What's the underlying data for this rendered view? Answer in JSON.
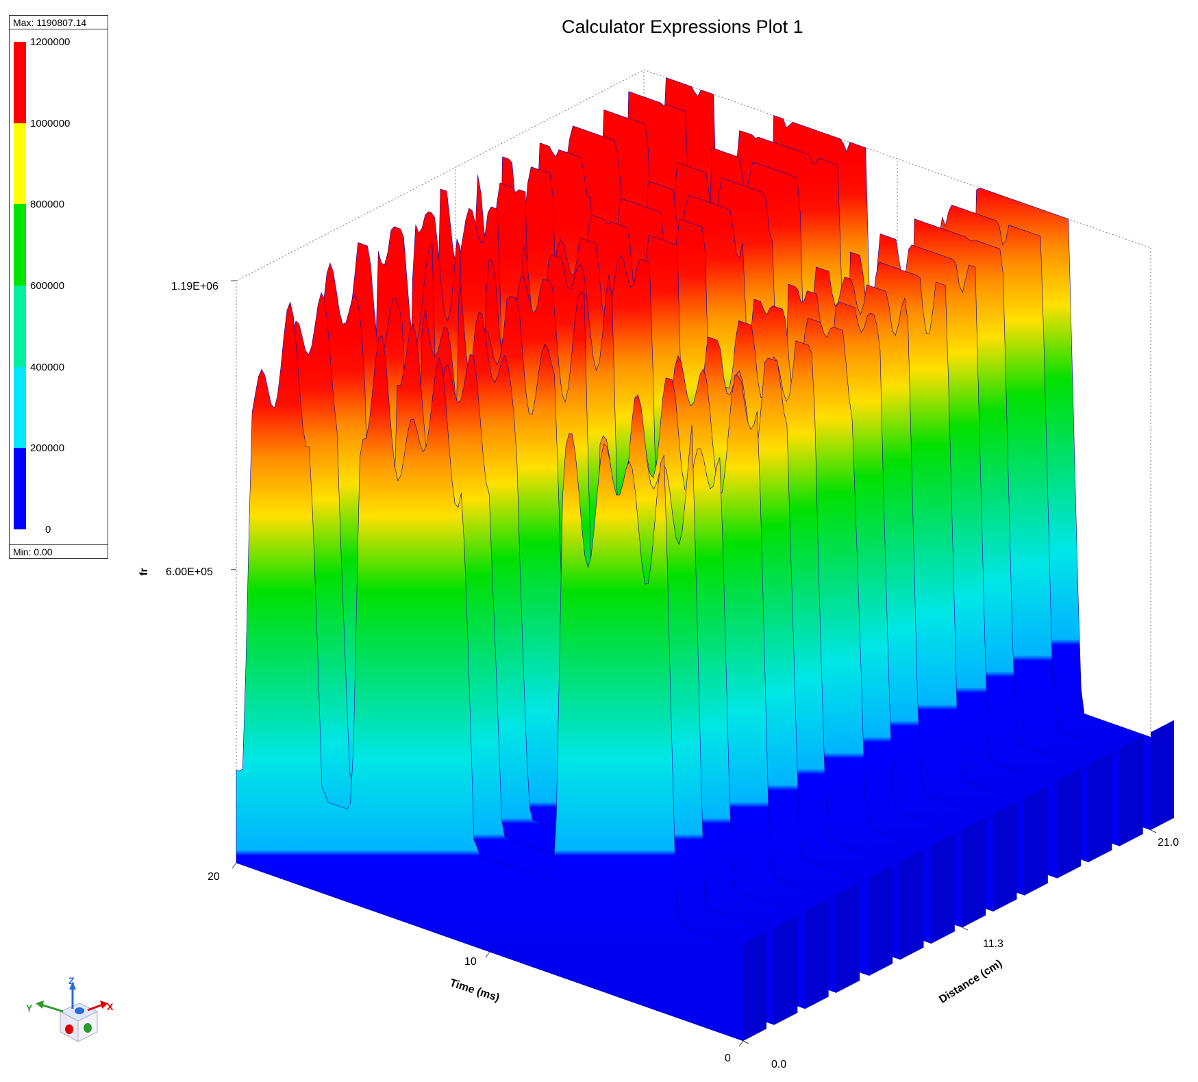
{
  "title": "Calculator Expressions Plot 1",
  "legend": {
    "max_text": "Max: 1190807.14",
    "min_text": "Min: 0.00",
    "ticks": [
      "1200000",
      "1000000",
      "800000",
      "600000",
      "400000",
      "200000",
      "0"
    ],
    "colors": [
      "#0000ff",
      "#00e8ff",
      "#00f0a0",
      "#00e400",
      "#ffff00",
      "#ff0000"
    ]
  },
  "chart_data": {
    "type": "surface",
    "title": "Calculator Expressions Plot 1",
    "zlabel": "fr",
    "xlabel": "Time (ms)",
    "ylabel": "Distance (cm)",
    "z_ticks": [
      "1.19E+06",
      "6.00E+05"
    ],
    "time_ticks": [
      "20",
      "10",
      "0"
    ],
    "distance_ticks": [
      "21.0",
      "11.3",
      "0.0"
    ],
    "zlim": [
      0,
      1190807.14
    ],
    "xlim": [
      0,
      20
    ],
    "ylim": [
      0,
      21.0
    ],
    "colormap": [
      {
        "from": 0,
        "to": 200000,
        "color": "#0000ff"
      },
      {
        "from": 200000,
        "to": 400000,
        "color": "#00e8ff"
      },
      {
        "from": 400000,
        "to": 600000,
        "color": "#00f0a0"
      },
      {
        "from": 600000,
        "to": 800000,
        "color": "#00e400"
      },
      {
        "from": 800000,
        "to": 1000000,
        "color": "#ffff00"
      },
      {
        "from": 1000000,
        "to": 1200000,
        "color": "#ff0000"
      }
    ],
    "distance_stations": [
      0.0,
      1.6,
      3.2,
      4.8,
      6.5,
      8.1,
      9.7,
      11.3,
      12.9,
      14.5,
      16.2,
      17.8,
      19.4,
      21.0
    ],
    "pulses_ms": [
      [
        2.5,
        7.5
      ],
      [
        10.5,
        15.5
      ],
      [
        16.5,
        19.8
      ]
    ],
    "peak_value": 1190807.14,
    "base_value": 200000
  },
  "triad": {
    "z": "Z",
    "y": "Y",
    "x": "X"
  }
}
